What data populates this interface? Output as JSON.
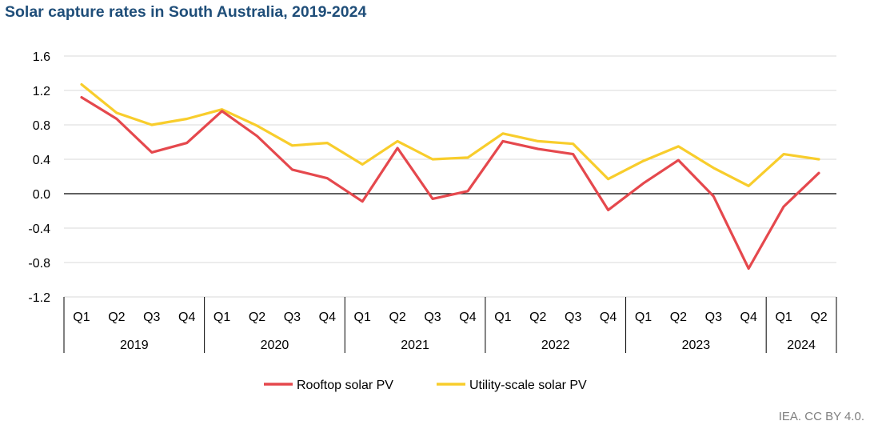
{
  "chart_data": {
    "type": "line",
    "title": "Solar capture rates in South Australia, 2019-2024",
    "xlabel": "",
    "ylabel": "",
    "ylim": [
      -1.2,
      1.6
    ],
    "yticks": [
      "1.6",
      "1.2",
      "0.8",
      "0.4",
      "0.0",
      "-0.4",
      "-0.8",
      "-1.2"
    ],
    "ytick_values": [
      1.6,
      1.2,
      0.8,
      0.4,
      0.0,
      -0.4,
      -0.8,
      -1.2
    ],
    "grid": true,
    "legend_position": "bottom",
    "categories": [
      "Q1",
      "Q2",
      "Q3",
      "Q4",
      "Q1",
      "Q2",
      "Q3",
      "Q4",
      "Q1",
      "Q2",
      "Q3",
      "Q4",
      "Q1",
      "Q2",
      "Q3",
      "Q4",
      "Q1",
      "Q2",
      "Q3",
      "Q4",
      "Q1",
      "Q2"
    ],
    "groups": [
      {
        "label": "2019",
        "count": 4
      },
      {
        "label": "2020",
        "count": 4
      },
      {
        "label": "2021",
        "count": 4
      },
      {
        "label": "2022",
        "count": 4
      },
      {
        "label": "2023",
        "count": 4
      },
      {
        "label": "2024",
        "count": 2
      }
    ],
    "series": [
      {
        "name": "Rooftop solar PV",
        "color": "#e5484d",
        "values": [
          1.12,
          0.87,
          0.48,
          0.59,
          0.96,
          0.67,
          0.28,
          0.18,
          -0.09,
          0.53,
          -0.06,
          0.03,
          0.61,
          0.52,
          0.46,
          -0.19,
          0.12,
          0.39,
          -0.03,
          -0.87,
          -0.15,
          0.24
        ]
      },
      {
        "name": "Utility-scale solar PV",
        "color": "#f8cd2c",
        "values": [
          1.27,
          0.94,
          0.8,
          0.87,
          0.98,
          0.79,
          0.56,
          0.59,
          0.34,
          0.61,
          0.4,
          0.42,
          0.7,
          0.61,
          0.58,
          0.17,
          0.38,
          0.55,
          0.3,
          0.09,
          0.46,
          0.4
        ]
      }
    ]
  },
  "credit": "IEA. CC BY 4.0."
}
